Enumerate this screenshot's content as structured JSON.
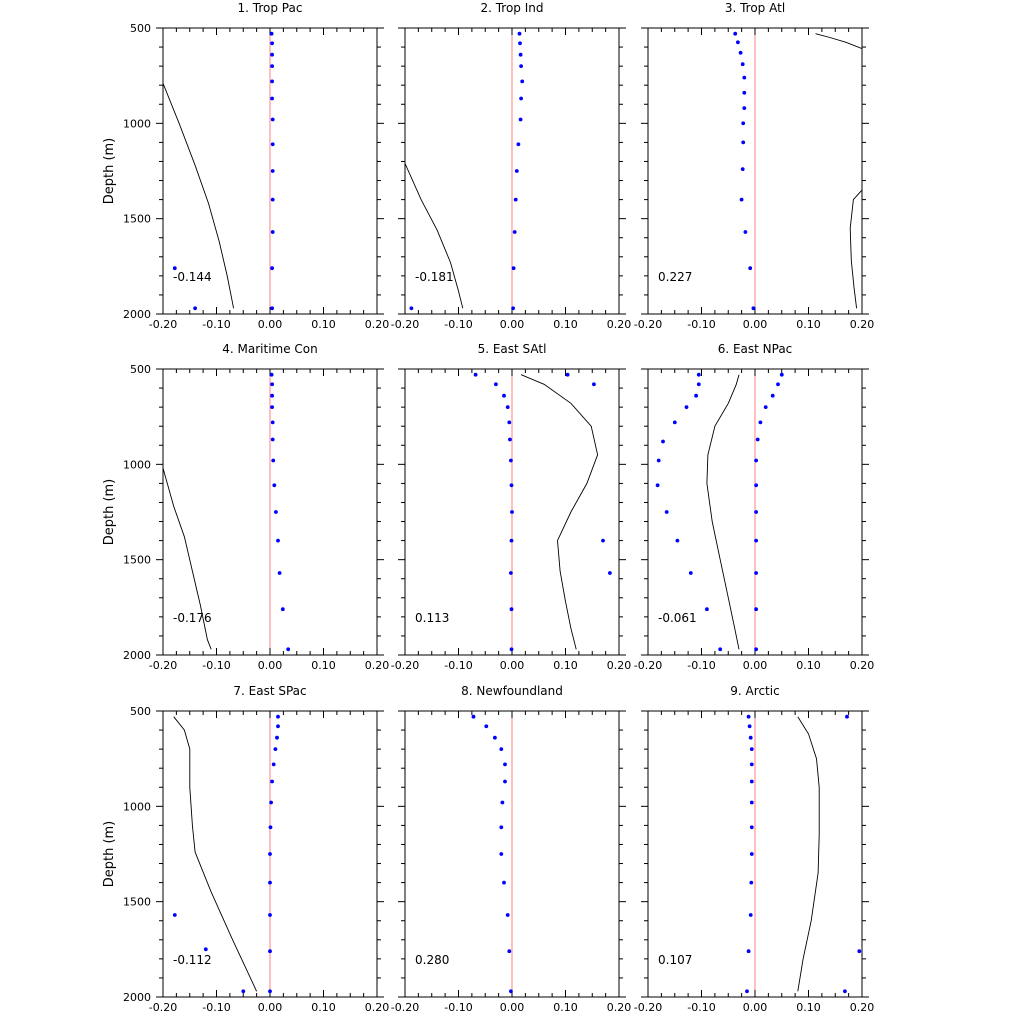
{
  "chart_data": [
    {
      "type": "scatter",
      "title": "1. Trop Pac",
      "ylabel": "Depth (m)",
      "xlim": [
        -0.2,
        0.2
      ],
      "ylim": [
        2000,
        500
      ],
      "xticks": [
        "-0.20",
        "-0.10",
        "0.00",
        "0.10",
        "0.20"
      ],
      "yticks": [
        "500",
        "1000",
        "1500",
        "2000"
      ],
      "correlation": "-0.144",
      "colors": {
        "points": "#0000ff",
        "zero_line": "#ff8080",
        "line": "#000000"
      },
      "points": [
        {
          "x": 0.003,
          "y": 530
        },
        {
          "x": 0.004,
          "y": 580
        },
        {
          "x": 0.004,
          "y": 640
        },
        {
          "x": 0.004,
          "y": 700
        },
        {
          "x": 0.004,
          "y": 780
        },
        {
          "x": 0.004,
          "y": 870
        },
        {
          "x": 0.005,
          "y": 980
        },
        {
          "x": 0.005,
          "y": 1110
        },
        {
          "x": 0.005,
          "y": 1250
        },
        {
          "x": 0.005,
          "y": 1400
        },
        {
          "x": 0.005,
          "y": 1570
        },
        {
          "x": 0.004,
          "y": 1760
        },
        {
          "x": -0.178,
          "y": 1760
        },
        {
          "x": -0.14,
          "y": 1970
        },
        {
          "x": 0.004,
          "y": 1970
        }
      ],
      "line": [
        {
          "x": -0.2,
          "y": 790
        },
        {
          "x": -0.17,
          "y": 1000
        },
        {
          "x": -0.14,
          "y": 1220
        },
        {
          "x": -0.115,
          "y": 1420
        },
        {
          "x": -0.095,
          "y": 1620
        },
        {
          "x": -0.08,
          "y": 1800
        },
        {
          "x": -0.068,
          "y": 1970
        }
      ]
    },
    {
      "type": "scatter",
      "title": "2. Trop Ind",
      "ylabel": "",
      "xlim": [
        -0.2,
        0.2
      ],
      "ylim": [
        2000,
        500
      ],
      "xticks": [
        "-0.20",
        "-0.10",
        "0.00",
        "0.10",
        "0.20"
      ],
      "yticks": [],
      "correlation": "-0.181",
      "colors": {
        "points": "#0000ff",
        "zero_line": "#ff8080",
        "line": "#000000"
      },
      "points": [
        {
          "x": 0.014,
          "y": 530
        },
        {
          "x": 0.015,
          "y": 580
        },
        {
          "x": 0.016,
          "y": 640
        },
        {
          "x": 0.017,
          "y": 700
        },
        {
          "x": 0.019,
          "y": 780
        },
        {
          "x": 0.017,
          "y": 870
        },
        {
          "x": 0.016,
          "y": 980
        },
        {
          "x": 0.012,
          "y": 1110
        },
        {
          "x": 0.009,
          "y": 1250
        },
        {
          "x": 0.007,
          "y": 1400
        },
        {
          "x": 0.005,
          "y": 1570
        },
        {
          "x": 0.003,
          "y": 1760
        },
        {
          "x": -0.188,
          "y": 1970
        },
        {
          "x": 0.002,
          "y": 1970
        }
      ],
      "line": [
        {
          "x": -0.2,
          "y": 1210
        },
        {
          "x": -0.17,
          "y": 1400
        },
        {
          "x": -0.14,
          "y": 1560
        },
        {
          "x": -0.115,
          "y": 1730
        },
        {
          "x": -0.1,
          "y": 1880
        },
        {
          "x": -0.092,
          "y": 1970
        }
      ]
    },
    {
      "type": "scatter",
      "title": "3. Trop Atl",
      "ylabel": "",
      "xlim": [
        -0.2,
        0.2
      ],
      "ylim": [
        2000,
        500
      ],
      "xticks": [
        "-0.20",
        "-0.10",
        "0.00",
        "0.10",
        "0.20"
      ],
      "yticks": [],
      "correlation": "0.227",
      "colors": {
        "points": "#0000ff",
        "zero_line": "#ff8080",
        "line": "#000000"
      },
      "points": [
        {
          "x": -0.037,
          "y": 530
        },
        {
          "x": -0.032,
          "y": 575
        },
        {
          "x": -0.027,
          "y": 630
        },
        {
          "x": -0.023,
          "y": 690
        },
        {
          "x": -0.02,
          "y": 760
        },
        {
          "x": -0.02,
          "y": 840
        },
        {
          "x": -0.02,
          "y": 920
        },
        {
          "x": -0.022,
          "y": 1000
        },
        {
          "x": -0.022,
          "y": 1100
        },
        {
          "x": -0.023,
          "y": 1240
        },
        {
          "x": -0.025,
          "y": 1400
        },
        {
          "x": -0.018,
          "y": 1570
        },
        {
          "x": -0.009,
          "y": 1760
        },
        {
          "x": -0.003,
          "y": 1970
        }
      ],
      "line_segments": [
        [
          {
            "x": 0.113,
            "y": 530
          },
          {
            "x": 0.14,
            "y": 550
          },
          {
            "x": 0.17,
            "y": 575
          },
          {
            "x": 0.2,
            "y": 608
          }
        ],
        [
          {
            "x": 0.2,
            "y": 1350
          },
          {
            "x": 0.184,
            "y": 1400
          },
          {
            "x": 0.178,
            "y": 1550
          },
          {
            "x": 0.18,
            "y": 1720
          },
          {
            "x": 0.185,
            "y": 1860
          },
          {
            "x": 0.19,
            "y": 1970
          }
        ]
      ]
    },
    {
      "type": "scatter",
      "title": "4. Maritime Con",
      "ylabel": "Depth (m)",
      "xlim": [
        -0.2,
        0.2
      ],
      "ylim": [
        2000,
        500
      ],
      "xticks": [
        "-0.20",
        "-0.10",
        "0.00",
        "0.10",
        "0.20"
      ],
      "yticks": [
        "500",
        "1000",
        "1500",
        "2000"
      ],
      "correlation": "-0.176",
      "colors": {
        "points": "#0000ff",
        "zero_line": "#ff8080",
        "line": "#000000"
      },
      "points": [
        {
          "x": 0.003,
          "y": 530
        },
        {
          "x": 0.004,
          "y": 580
        },
        {
          "x": 0.004,
          "y": 640
        },
        {
          "x": 0.004,
          "y": 700
        },
        {
          "x": 0.005,
          "y": 780
        },
        {
          "x": 0.005,
          "y": 870
        },
        {
          "x": 0.006,
          "y": 980
        },
        {
          "x": 0.008,
          "y": 1110
        },
        {
          "x": 0.011,
          "y": 1250
        },
        {
          "x": 0.015,
          "y": 1400
        },
        {
          "x": 0.018,
          "y": 1570
        },
        {
          "x": 0.024,
          "y": 1760
        },
        {
          "x": 0.034,
          "y": 1970
        }
      ],
      "line": [
        {
          "x": -0.2,
          "y": 1020
        },
        {
          "x": -0.18,
          "y": 1220
        },
        {
          "x": -0.16,
          "y": 1380
        },
        {
          "x": -0.145,
          "y": 1560
        },
        {
          "x": -0.13,
          "y": 1740
        },
        {
          "x": -0.117,
          "y": 1920
        },
        {
          "x": -0.11,
          "y": 1970
        }
      ]
    },
    {
      "type": "scatter",
      "title": "5. East SAtl",
      "ylabel": "",
      "xlim": [
        -0.2,
        0.2
      ],
      "ylim": [
        2000,
        500
      ],
      "xticks": [
        "-0.20",
        "-0.10",
        "0.00",
        "0.10",
        "0.20"
      ],
      "yticks": [],
      "correlation": "0.113",
      "colors": {
        "points": "#0000ff",
        "zero_line": "#ff8080",
        "line": "#000000"
      },
      "points": [
        {
          "x": -0.068,
          "y": 530
        },
        {
          "x": -0.03,
          "y": 580
        },
        {
          "x": -0.015,
          "y": 640
        },
        {
          "x": -0.008,
          "y": 700
        },
        {
          "x": -0.005,
          "y": 780
        },
        {
          "x": -0.004,
          "y": 870
        },
        {
          "x": -0.002,
          "y": 980
        },
        {
          "x": -0.001,
          "y": 1110
        },
        {
          "x": 0.0,
          "y": 1250
        },
        {
          "x": -0.001,
          "y": 1400
        },
        {
          "x": -0.002,
          "y": 1570
        },
        {
          "x": -0.001,
          "y": 1760
        },
        {
          "x": -0.001,
          "y": 1970
        },
        {
          "x": 0.104,
          "y": 530
        },
        {
          "x": 0.153,
          "y": 580
        },
        {
          "x": 0.17,
          "y": 1400
        },
        {
          "x": 0.183,
          "y": 1570
        }
      ],
      "line": [
        {
          "x": 0.017,
          "y": 530
        },
        {
          "x": 0.06,
          "y": 580
        },
        {
          "x": 0.11,
          "y": 680
        },
        {
          "x": 0.148,
          "y": 800
        },
        {
          "x": 0.16,
          "y": 950
        },
        {
          "x": 0.14,
          "y": 1100
        },
        {
          "x": 0.11,
          "y": 1250
        },
        {
          "x": 0.085,
          "y": 1400
        },
        {
          "x": 0.09,
          "y": 1560
        },
        {
          "x": 0.1,
          "y": 1720
        },
        {
          "x": 0.11,
          "y": 1860
        },
        {
          "x": 0.12,
          "y": 1970
        }
      ]
    },
    {
      "type": "scatter",
      "title": "6. East NPac",
      "ylabel": "",
      "xlim": [
        -0.2,
        0.2
      ],
      "ylim": [
        2000,
        500
      ],
      "xticks": [
        "-0.20",
        "-0.10",
        "0.00",
        "0.10",
        "0.20"
      ],
      "yticks": [],
      "correlation": "-0.061",
      "colors": {
        "points": "#0000ff",
        "zero_line": "#ff8080",
        "line": "#000000"
      },
      "points": [
        {
          "x": -0.105,
          "y": 530
        },
        {
          "x": -0.105,
          "y": 580
        },
        {
          "x": -0.11,
          "y": 640
        },
        {
          "x": -0.128,
          "y": 700
        },
        {
          "x": -0.15,
          "y": 780
        },
        {
          "x": -0.172,
          "y": 880
        },
        {
          "x": -0.18,
          "y": 980
        },
        {
          "x": -0.182,
          "y": 1110
        },
        {
          "x": -0.165,
          "y": 1250
        },
        {
          "x": -0.145,
          "y": 1400
        },
        {
          "x": -0.12,
          "y": 1570
        },
        {
          "x": -0.09,
          "y": 1760
        },
        {
          "x": -0.065,
          "y": 1970
        },
        {
          "x": 0.05,
          "y": 530
        },
        {
          "x": 0.043,
          "y": 580
        },
        {
          "x": 0.033,
          "y": 640
        },
        {
          "x": 0.02,
          "y": 700
        },
        {
          "x": 0.01,
          "y": 780
        },
        {
          "x": 0.005,
          "y": 870
        },
        {
          "x": 0.002,
          "y": 980
        },
        {
          "x": 0.002,
          "y": 1110
        },
        {
          "x": 0.002,
          "y": 1250
        },
        {
          "x": 0.002,
          "y": 1400
        },
        {
          "x": 0.002,
          "y": 1570
        },
        {
          "x": 0.002,
          "y": 1760
        },
        {
          "x": 0.002,
          "y": 1970
        }
      ],
      "line": [
        {
          "x": -0.03,
          "y": 530
        },
        {
          "x": -0.035,
          "y": 580
        },
        {
          "x": -0.05,
          "y": 680
        },
        {
          "x": -0.075,
          "y": 800
        },
        {
          "x": -0.088,
          "y": 950
        },
        {
          "x": -0.09,
          "y": 1100
        },
        {
          "x": -0.08,
          "y": 1300
        },
        {
          "x": -0.065,
          "y": 1500
        },
        {
          "x": -0.05,
          "y": 1700
        },
        {
          "x": -0.038,
          "y": 1860
        },
        {
          "x": -0.03,
          "y": 1970
        }
      ]
    },
    {
      "type": "scatter",
      "title": "7. East SPac",
      "ylabel": "Depth (m)",
      "xlim": [
        -0.2,
        0.2
      ],
      "ylim": [
        2000,
        500
      ],
      "xticks": [
        "-0.20",
        "-0.10",
        "0.00",
        "0.10",
        "0.20"
      ],
      "yticks": [
        "500",
        "1000",
        "1500",
        "2000"
      ],
      "correlation": "-0.112",
      "colors": {
        "points": "#0000ff",
        "zero_line": "#ff8080",
        "line": "#000000"
      },
      "points": [
        {
          "x": 0.015,
          "y": 530
        },
        {
          "x": 0.015,
          "y": 580
        },
        {
          "x": 0.013,
          "y": 640
        },
        {
          "x": 0.01,
          "y": 700
        },
        {
          "x": 0.007,
          "y": 780
        },
        {
          "x": 0.004,
          "y": 870
        },
        {
          "x": 0.002,
          "y": 980
        },
        {
          "x": 0.001,
          "y": 1110
        },
        {
          "x": 0.0,
          "y": 1250
        },
        {
          "x": 0.0,
          "y": 1400
        },
        {
          "x": -0.178,
          "y": 1570
        },
        {
          "x": 0.0,
          "y": 1570
        },
        {
          "x": -0.12,
          "y": 1750
        },
        {
          "x": 0.0,
          "y": 1760
        },
        {
          "x": -0.05,
          "y": 1970
        },
        {
          "x": 0.0,
          "y": 1970
        }
      ],
      "line": [
        {
          "x": -0.18,
          "y": 530
        },
        {
          "x": -0.16,
          "y": 600
        },
        {
          "x": -0.15,
          "y": 700
        },
        {
          "x": -0.15,
          "y": 900
        },
        {
          "x": -0.145,
          "y": 1100
        },
        {
          "x": -0.14,
          "y": 1240
        },
        {
          "x": -0.11,
          "y": 1450
        },
        {
          "x": -0.07,
          "y": 1700
        },
        {
          "x": -0.04,
          "y": 1880
        },
        {
          "x": -0.025,
          "y": 1970
        }
      ]
    },
    {
      "type": "scatter",
      "title": "8. Newfoundland",
      "ylabel": "",
      "xlim": [
        -0.2,
        0.2
      ],
      "ylim": [
        2000,
        500
      ],
      "xticks": [
        "-0.20",
        "-0.10",
        "0.00",
        "0.10",
        "0.20"
      ],
      "yticks": [],
      "correlation": "0.280",
      "colors": {
        "points": "#0000ff",
        "zero_line": "#ff8080",
        "line": "#000000"
      },
      "points": [
        {
          "x": -0.072,
          "y": 530
        },
        {
          "x": -0.048,
          "y": 580
        },
        {
          "x": -0.032,
          "y": 640
        },
        {
          "x": -0.02,
          "y": 700
        },
        {
          "x": -0.013,
          "y": 780
        },
        {
          "x": -0.013,
          "y": 870
        },
        {
          "x": -0.018,
          "y": 980
        },
        {
          "x": -0.02,
          "y": 1110
        },
        {
          "x": -0.02,
          "y": 1250
        },
        {
          "x": -0.015,
          "y": 1400
        },
        {
          "x": -0.008,
          "y": 1570
        },
        {
          "x": -0.005,
          "y": 1760
        },
        {
          "x": -0.002,
          "y": 1970
        }
      ],
      "line": []
    },
    {
      "type": "scatter",
      "title": "9. Arctic",
      "ylabel": "",
      "xlim": [
        -0.2,
        0.2
      ],
      "ylim": [
        2000,
        500
      ],
      "xticks": [
        "-0.20",
        "-0.10",
        "0.00",
        "0.10",
        "0.20"
      ],
      "yticks": [],
      "correlation": "0.107",
      "colors": {
        "points": "#0000ff",
        "zero_line": "#ff8080",
        "line": "#000000"
      },
      "points": [
        {
          "x": -0.012,
          "y": 530
        },
        {
          "x": -0.01,
          "y": 580
        },
        {
          "x": -0.008,
          "y": 640
        },
        {
          "x": -0.006,
          "y": 700
        },
        {
          "x": -0.006,
          "y": 780
        },
        {
          "x": -0.006,
          "y": 870
        },
        {
          "x": -0.006,
          "y": 980
        },
        {
          "x": -0.006,
          "y": 1110
        },
        {
          "x": -0.006,
          "y": 1250
        },
        {
          "x": -0.007,
          "y": 1400
        },
        {
          "x": -0.008,
          "y": 1570
        },
        {
          "x": -0.012,
          "y": 1760
        },
        {
          "x": -0.015,
          "y": 1970
        },
        {
          "x": 0.172,
          "y": 530
        },
        {
          "x": 0.195,
          "y": 1760
        },
        {
          "x": 0.168,
          "y": 1970
        }
      ],
      "line": [
        {
          "x": 0.08,
          "y": 530
        },
        {
          "x": 0.1,
          "y": 620
        },
        {
          "x": 0.115,
          "y": 750
        },
        {
          "x": 0.12,
          "y": 900
        },
        {
          "x": 0.12,
          "y": 1150
        },
        {
          "x": 0.118,
          "y": 1350
        },
        {
          "x": 0.105,
          "y": 1600
        },
        {
          "x": 0.09,
          "y": 1800
        },
        {
          "x": 0.08,
          "y": 1970
        }
      ]
    }
  ]
}
